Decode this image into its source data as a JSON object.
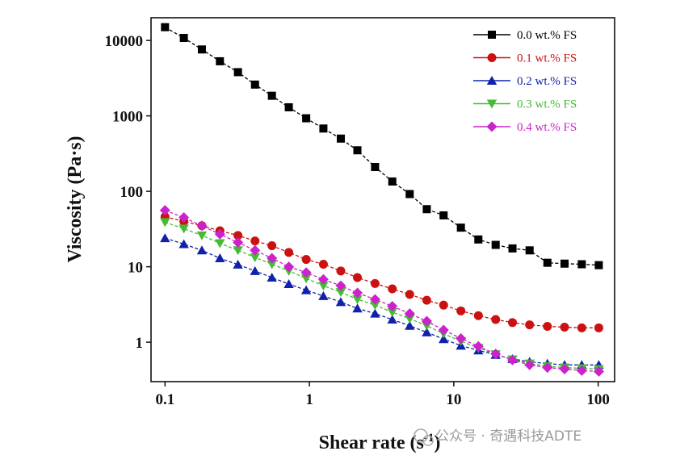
{
  "chart_data": {
    "type": "line",
    "title": "",
    "xlabel": "Shear rate (s",
    "xlabel_sup": "-1",
    "xlabel_close": ")",
    "ylabel": "Viscosity (Pa·s)",
    "xscale": "log",
    "yscale": "log",
    "xlim": [
      0.08,
      130
    ],
    "ylim": [
      0.3,
      20000
    ],
    "grid": false,
    "legend_position": "top-right",
    "x_ticks": [
      {
        "v": 0.1,
        "label": "0.1"
      },
      {
        "v": 1,
        "label": "1"
      },
      {
        "v": 10,
        "label": "10"
      },
      {
        "v": 100,
        "label": "100"
      }
    ],
    "y_ticks": [
      {
        "v": 1,
        "label": "1"
      },
      {
        "v": 10,
        "label": "10"
      },
      {
        "v": 100,
        "label": "100"
      },
      {
        "v": 1000,
        "label": "1000"
      },
      {
        "v": 10000,
        "label": "10000"
      }
    ],
    "x": [
      0.1,
      0.135,
      0.18,
      0.24,
      0.32,
      0.42,
      0.55,
      0.72,
      0.95,
      1.25,
      1.65,
      2.15,
      2.85,
      3.75,
      4.95,
      6.5,
      8.5,
      11.2,
      14.8,
      19.5,
      25.5,
      33.5,
      44.5,
      58.5,
      77,
      101
    ],
    "series": [
      {
        "name": "0.0 wt.% FS",
        "color": "#000000",
        "marker": "square",
        "values": [
          15000,
          10800,
          7600,
          5300,
          3800,
          2600,
          1850,
          1300,
          930,
          680,
          500,
          350,
          210,
          135,
          92,
          58,
          48,
          33,
          23,
          19.5,
          17.5,
          16.5,
          11.3,
          11,
          10.8,
          10.5
        ]
      },
      {
        "name": "0.1 wt.% FS",
        "color": "#cc1111",
        "marker": "circle",
        "values": [
          46,
          40,
          35,
          30,
          26,
          22,
          19,
          15.5,
          12.5,
          10.8,
          8.8,
          7.2,
          6,
          5.1,
          4.3,
          3.6,
          3.1,
          2.6,
          2.25,
          2,
          1.82,
          1.7,
          1.62,
          1.58,
          1.55,
          1.55
        ]
      },
      {
        "name": "0.2 wt.% FS",
        "color": "#1122aa",
        "marker": "triangle-up",
        "values": [
          24,
          20,
          16.5,
          13,
          10.7,
          8.8,
          7.2,
          5.9,
          4.9,
          4.1,
          3.4,
          2.8,
          2.4,
          2,
          1.65,
          1.35,
          1.1,
          0.9,
          0.78,
          0.68,
          0.6,
          0.55,
          0.52,
          0.5,
          0.5,
          0.5
        ]
      },
      {
        "name": "0.3 wt.% FS",
        "color": "#44bb33",
        "marker": "triangle-down",
        "values": [
          39,
          32,
          26,
          20.5,
          16.5,
          13.3,
          10.8,
          8.8,
          7,
          5.6,
          4.6,
          3.7,
          3.1,
          2.5,
          2.05,
          1.65,
          1.3,
          1.03,
          0.84,
          0.69,
          0.59,
          0.52,
          0.48,
          0.46,
          0.45,
          0.44
        ]
      },
      {
        "name": "0.4 wt.% FS",
        "color": "#cc22cc",
        "marker": "diamond",
        "values": [
          56,
          45,
          35,
          27,
          21,
          16.5,
          13,
          10,
          8.4,
          6.8,
          5.6,
          4.5,
          3.7,
          3,
          2.4,
          1.9,
          1.45,
          1.12,
          0.88,
          0.7,
          0.58,
          0.5,
          0.46,
          0.44,
          0.42,
          0.41
        ]
      }
    ]
  },
  "watermark": {
    "text": "公众号 · 奇遇科技ADTE"
  }
}
